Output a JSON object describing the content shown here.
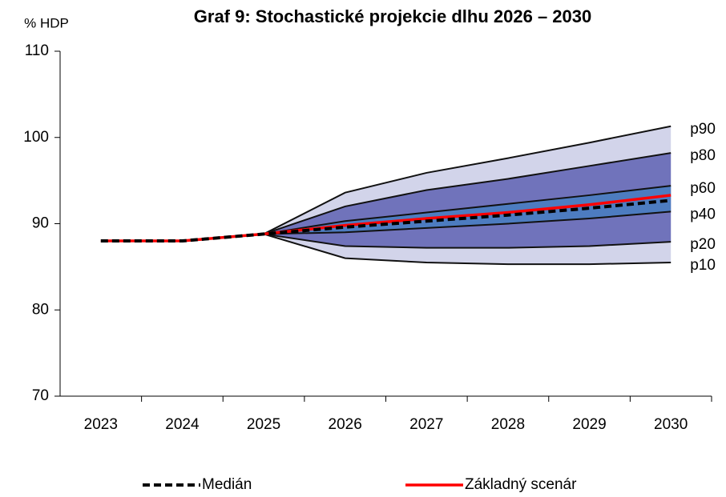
{
  "chart_data": {
    "type": "fan",
    "title": "Graf 9: Stochastické projekcie dlhu 2026 – 2030",
    "ylabel": "% HDP",
    "categories": [
      "2023",
      "2024",
      "2025",
      "2026",
      "2027",
      "2028",
      "2029",
      "2030"
    ],
    "ylim": [
      70,
      110
    ],
    "yticks": [
      70,
      80,
      90,
      100,
      110
    ],
    "series": [
      {
        "name": "p10",
        "kind": "percentile",
        "color": "#d2d4ea",
        "values": [
          null,
          null,
          88.8,
          86.0,
          85.5,
          85.3,
          85.3,
          85.5
        ]
      },
      {
        "name": "p20",
        "kind": "percentile",
        "color": "#7073bb",
        "values": [
          null,
          null,
          88.8,
          87.4,
          87.2,
          87.2,
          87.4,
          87.9
        ]
      },
      {
        "name": "p40",
        "kind": "percentile",
        "color": "#4d7cc0",
        "values": [
          null,
          null,
          88.8,
          89.0,
          89.5,
          90.0,
          90.6,
          91.4
        ]
      },
      {
        "name": "p60",
        "kind": "percentile",
        "color": "#4d7cc0",
        "values": [
          null,
          null,
          88.8,
          90.3,
          91.3,
          92.3,
          93.3,
          94.4
        ]
      },
      {
        "name": "p80",
        "kind": "percentile",
        "color": "#7073bb",
        "values": [
          null,
          null,
          88.8,
          92.0,
          93.9,
          95.2,
          96.7,
          98.2
        ]
      },
      {
        "name": "p90",
        "kind": "percentile",
        "color": "#d2d4ea",
        "values": [
          null,
          null,
          88.8,
          93.6,
          95.9,
          97.6,
          99.4,
          101.3
        ]
      },
      {
        "name": "Medián",
        "kind": "line",
        "dashed": true,
        "color": "#000000",
        "values": [
          88.0,
          88.0,
          88.8,
          89.6,
          90.3,
          91.0,
          91.8,
          92.7
        ]
      },
      {
        "name": "Základný scenár",
        "kind": "line",
        "dashed": false,
        "color": "#ff0000",
        "values": [
          88.0,
          88.0,
          88.8,
          89.8,
          90.6,
          91.3,
          92.2,
          93.3
        ]
      }
    ]
  }
}
